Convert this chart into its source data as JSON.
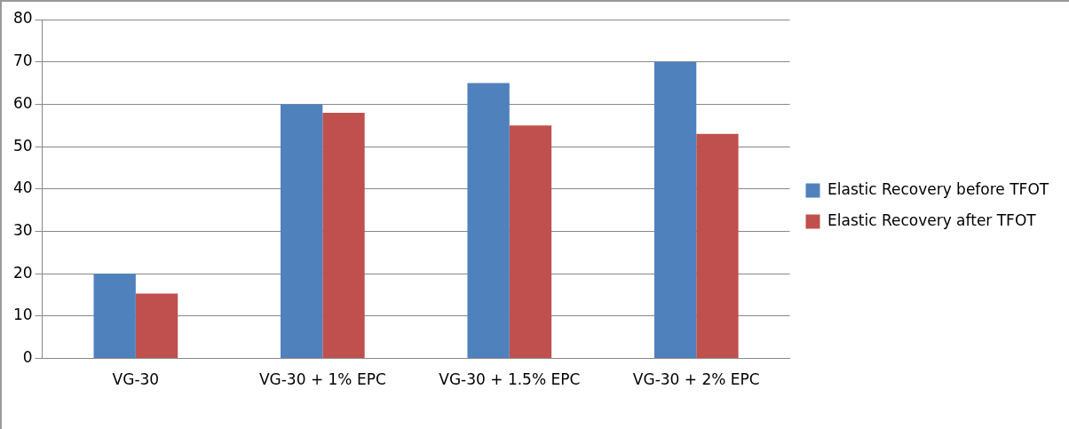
{
  "chart_data": {
    "type": "bar",
    "categories": [
      "VG-30",
      "VG-30 + 1% EPC",
      "VG-30 + 1.5% EPC",
      "VG-30 + 2% EPC"
    ],
    "series": [
      {
        "name": "Elastic Recovery before TFOT",
        "color": "#4f81bd",
        "values": [
          20,
          60,
          65,
          70
        ]
      },
      {
        "name": "Elastic Recovery after TFOT",
        "color": "#c0504d",
        "values": [
          15.3,
          58,
          55,
          53
        ]
      }
    ],
    "ylim": [
      0,
      80
    ],
    "yticks": [
      0,
      10,
      20,
      30,
      40,
      50,
      60,
      70,
      80
    ],
    "grid": "y",
    "legend": "right"
  }
}
